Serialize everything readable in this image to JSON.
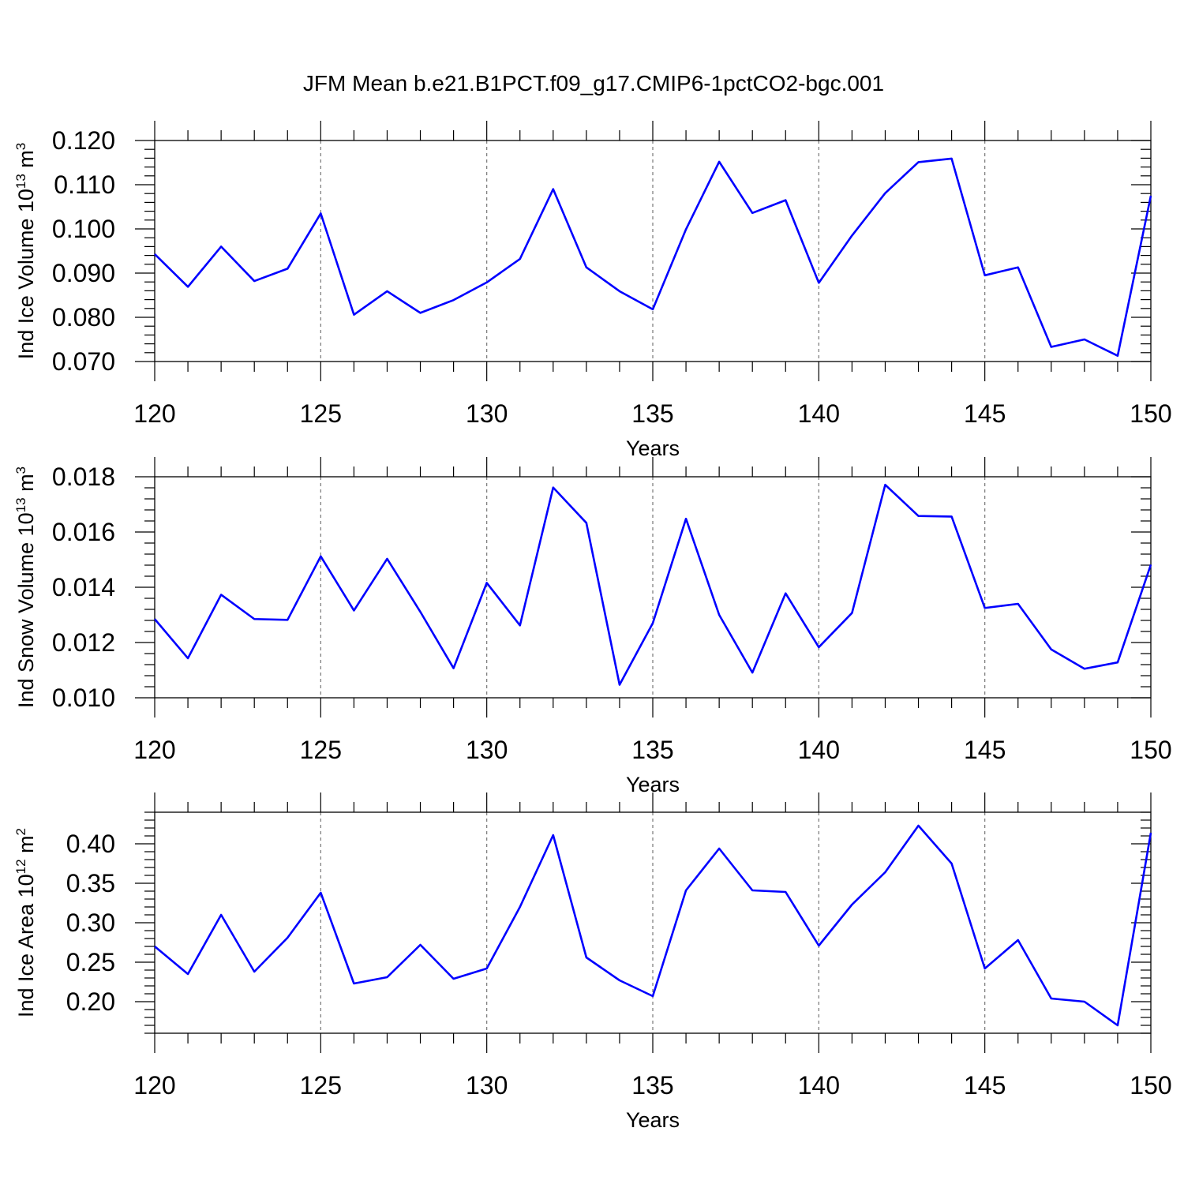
{
  "title": "JFM Mean b.e21.B1PCT.f09_g17.CMIP6-1pctCO2-bgc.001",
  "colors": {
    "line": "#0000ff",
    "axis": "#000000",
    "grid": "#777777"
  },
  "chart_data": [
    {
      "type": "line",
      "ylabel": "Ind Ice Volume 10",
      "ylabel_sup": "13",
      "ylabel_unit": " m",
      "ylabel_unit_sup": "3",
      "xlabel": "Years",
      "xlim": [
        120,
        150
      ],
      "ylim": [
        0.07,
        0.12
      ],
      "x_ticks": [
        "120",
        "125",
        "130",
        "135",
        "140",
        "145",
        "150"
      ],
      "y_ticks": [
        "0.070",
        "0.080",
        "0.090",
        "0.100",
        "0.110",
        "0.120"
      ],
      "grid": "vertical dashed at major x ticks",
      "x": [
        120,
        121,
        122,
        123,
        124,
        125,
        126,
        127,
        128,
        129,
        130,
        131,
        132,
        133,
        134,
        135,
        136,
        137,
        138,
        139,
        140,
        141,
        142,
        143,
        144,
        145,
        146,
        147,
        148,
        149,
        150
      ],
      "series": [
        {
          "values": [
            0.0943,
            0.0869,
            0.096,
            0.0882,
            0.091,
            0.1035,
            0.0806,
            0.0859,
            0.081,
            0.0839,
            0.0879,
            0.0932,
            0.109,
            0.0913,
            0.0859,
            0.0818,
            0.0999,
            0.1152,
            0.1036,
            0.1065,
            0.0878,
            0.0985,
            0.1081,
            0.1151,
            0.1159,
            0.0895,
            0.0913,
            0.0733,
            0.075,
            0.0713,
            0.1075
          ]
        }
      ]
    },
    {
      "type": "line",
      "ylabel": "Ind Snow Volume 10",
      "ylabel_sup": "13",
      "ylabel_unit": " m",
      "ylabel_unit_sup": "3",
      "xlabel": "Years",
      "xlim": [
        120,
        150
      ],
      "ylim": [
        0.01,
        0.018
      ],
      "x_ticks": [
        "120",
        "125",
        "130",
        "135",
        "140",
        "145",
        "150"
      ],
      "y_ticks": [
        "0.010",
        "0.012",
        "0.014",
        "0.016",
        "0.018"
      ],
      "grid": "vertical dashed at major x ticks",
      "x": [
        120,
        121,
        122,
        123,
        124,
        125,
        126,
        127,
        128,
        129,
        130,
        131,
        132,
        133,
        134,
        135,
        136,
        137,
        138,
        139,
        140,
        141,
        142,
        143,
        144,
        145,
        146,
        147,
        148,
        149,
        150
      ],
      "series": [
        {
          "values": [
            0.01285,
            0.01143,
            0.01373,
            0.01285,
            0.01282,
            0.01512,
            0.01316,
            0.01503,
            0.01311,
            0.01107,
            0.01416,
            0.01262,
            0.01761,
            0.01633,
            0.01047,
            0.0127,
            0.01648,
            0.013,
            0.01091,
            0.01378,
            0.01183,
            0.01307,
            0.01771,
            0.01658,
            0.01656,
            0.01325,
            0.0134,
            0.01175,
            0.01105,
            0.01128,
            0.01482
          ]
        }
      ]
    },
    {
      "type": "line",
      "ylabel": "Ind Ice Area 10",
      "ylabel_sup": "12",
      "ylabel_unit": " m",
      "ylabel_unit_sup": "2",
      "xlabel": "Years",
      "xlim": [
        120,
        150
      ],
      "ylim": [
        0.16,
        0.44
      ],
      "x_ticks": [
        "120",
        "125",
        "130",
        "135",
        "140",
        "145",
        "150"
      ],
      "y_ticks": [
        "0.20",
        "0.25",
        "0.30",
        "0.35",
        "0.40"
      ],
      "grid": "vertical dashed at major x ticks",
      "x": [
        120,
        121,
        122,
        123,
        124,
        125,
        126,
        127,
        128,
        129,
        130,
        131,
        132,
        133,
        134,
        135,
        136,
        137,
        138,
        139,
        140,
        141,
        142,
        143,
        144,
        145,
        146,
        147,
        148,
        149,
        150
      ],
      "series": [
        {
          "values": [
            0.27,
            0.235,
            0.31,
            0.238,
            0.281,
            0.338,
            0.223,
            0.231,
            0.272,
            0.229,
            0.242,
            0.32,
            0.411,
            0.256,
            0.227,
            0.207,
            0.341,
            0.394,
            0.341,
            0.339,
            0.271,
            0.323,
            0.364,
            0.423,
            0.375,
            0.242,
            0.278,
            0.204,
            0.2,
            0.17,
            0.414
          ]
        }
      ]
    }
  ]
}
